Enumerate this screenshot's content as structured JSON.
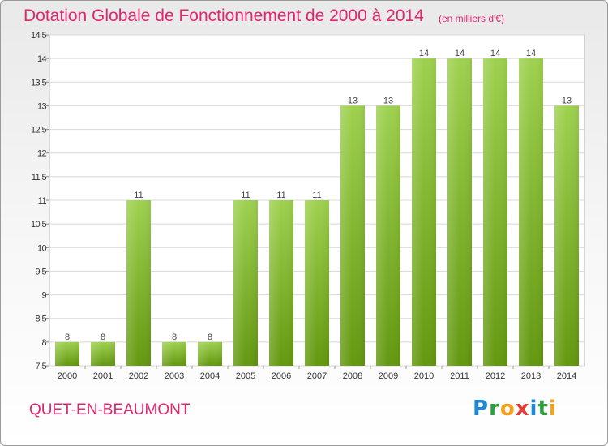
{
  "header": {
    "title": "Dotation Globale de Fonctionnement de 2000 à 2014",
    "subtitle": "(en milliers d'€)"
  },
  "footer": {
    "commune": "QUET-EN-BEAUMONT",
    "brand": "Proxiti",
    "brand_letters": [
      {
        "ch": "P",
        "color": "#1e88d8"
      },
      {
        "ch": "r",
        "color": "#2e9e3e"
      },
      {
        "ch": "o",
        "color": "#f5a11a"
      },
      {
        "ch": "x",
        "color": "#e53935"
      },
      {
        "ch": "i",
        "color": "#1e88d8"
      },
      {
        "ch": "t",
        "color": "#2e9e3e"
      },
      {
        "ch": "i",
        "color": "#f5a11a"
      }
    ]
  },
  "colors": {
    "title": "#e0266e",
    "bar_top": "#9ed14f",
    "bar_bottom": "#63980f",
    "grid": "#d8d8d8",
    "axis_text": "#333333"
  },
  "chart_data": {
    "type": "bar",
    "categories": [
      "2000",
      "2001",
      "2002",
      "2003",
      "2004",
      "2005",
      "2006",
      "2007",
      "2008",
      "2009",
      "2010",
      "2011",
      "2012",
      "2013",
      "2014"
    ],
    "values": [
      8,
      8,
      11,
      8,
      8,
      11,
      11,
      11,
      13,
      13,
      14,
      14,
      14,
      14,
      13
    ],
    "data_labels": [
      "8",
      "8",
      "11",
      "8",
      "8",
      "11",
      "11",
      "11",
      "13",
      "13",
      "14",
      "14",
      "14",
      "14",
      "13"
    ],
    "ylim": [
      7.5,
      14.5
    ],
    "yticks": [
      7.5,
      8,
      8.5,
      9,
      9.5,
      10,
      10.5,
      11,
      11.5,
      12,
      12.5,
      13,
      13.5,
      14,
      14.5
    ],
    "ytick_labels": [
      "7.5",
      "8",
      "8.5",
      "9",
      "9.5",
      "10",
      "10.5",
      "11",
      "11.5",
      "12",
      "12.5",
      "13",
      "13.5",
      "14",
      "14.5"
    ],
    "grid": true,
    "legend": "none"
  }
}
